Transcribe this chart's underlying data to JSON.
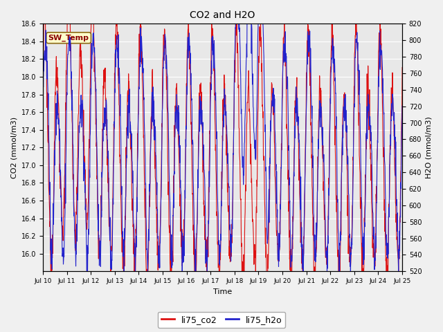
{
  "title": "CO2 and H2O",
  "xlabel": "Time",
  "ylabel_left": "CO2 (mmol/m3)",
  "ylabel_right": "H2O (mmol/m3)",
  "legend_label_co2": "li75_co2",
  "legend_label_h2o": "li75_h2o",
  "annotation_label": "SW_Temp",
  "co2_color": "#dd1111",
  "h2o_color": "#2222cc",
  "ylim_left": [
    15.8,
    18.6
  ],
  "ylim_right": [
    520,
    820
  ],
  "yticks_left": [
    16.0,
    16.2,
    16.4,
    16.6,
    16.8,
    17.0,
    17.2,
    17.4,
    17.6,
    17.8,
    18.0,
    18.2,
    18.4,
    18.6
  ],
  "yticks_right": [
    520,
    540,
    560,
    580,
    600,
    620,
    640,
    660,
    680,
    700,
    720,
    740,
    760,
    780,
    800,
    820
  ],
  "xtick_labels": [
    "Jul 10",
    "Jul 11",
    "Jul 12",
    "Jul 13",
    "Jul 14",
    "Jul 15",
    "Jul 16",
    "Jul 17",
    "Jul 18",
    "Jul 19",
    "Jul 20",
    "Jul 21",
    "Jul 22",
    "Jul 23",
    "Jul 24",
    "Jul 25"
  ],
  "background_color": "#f0f0f0",
  "plot_bg_color": "#e8e8e8",
  "grid_color": "#ffffff",
  "line_width": 0.8,
  "seed": 12345
}
